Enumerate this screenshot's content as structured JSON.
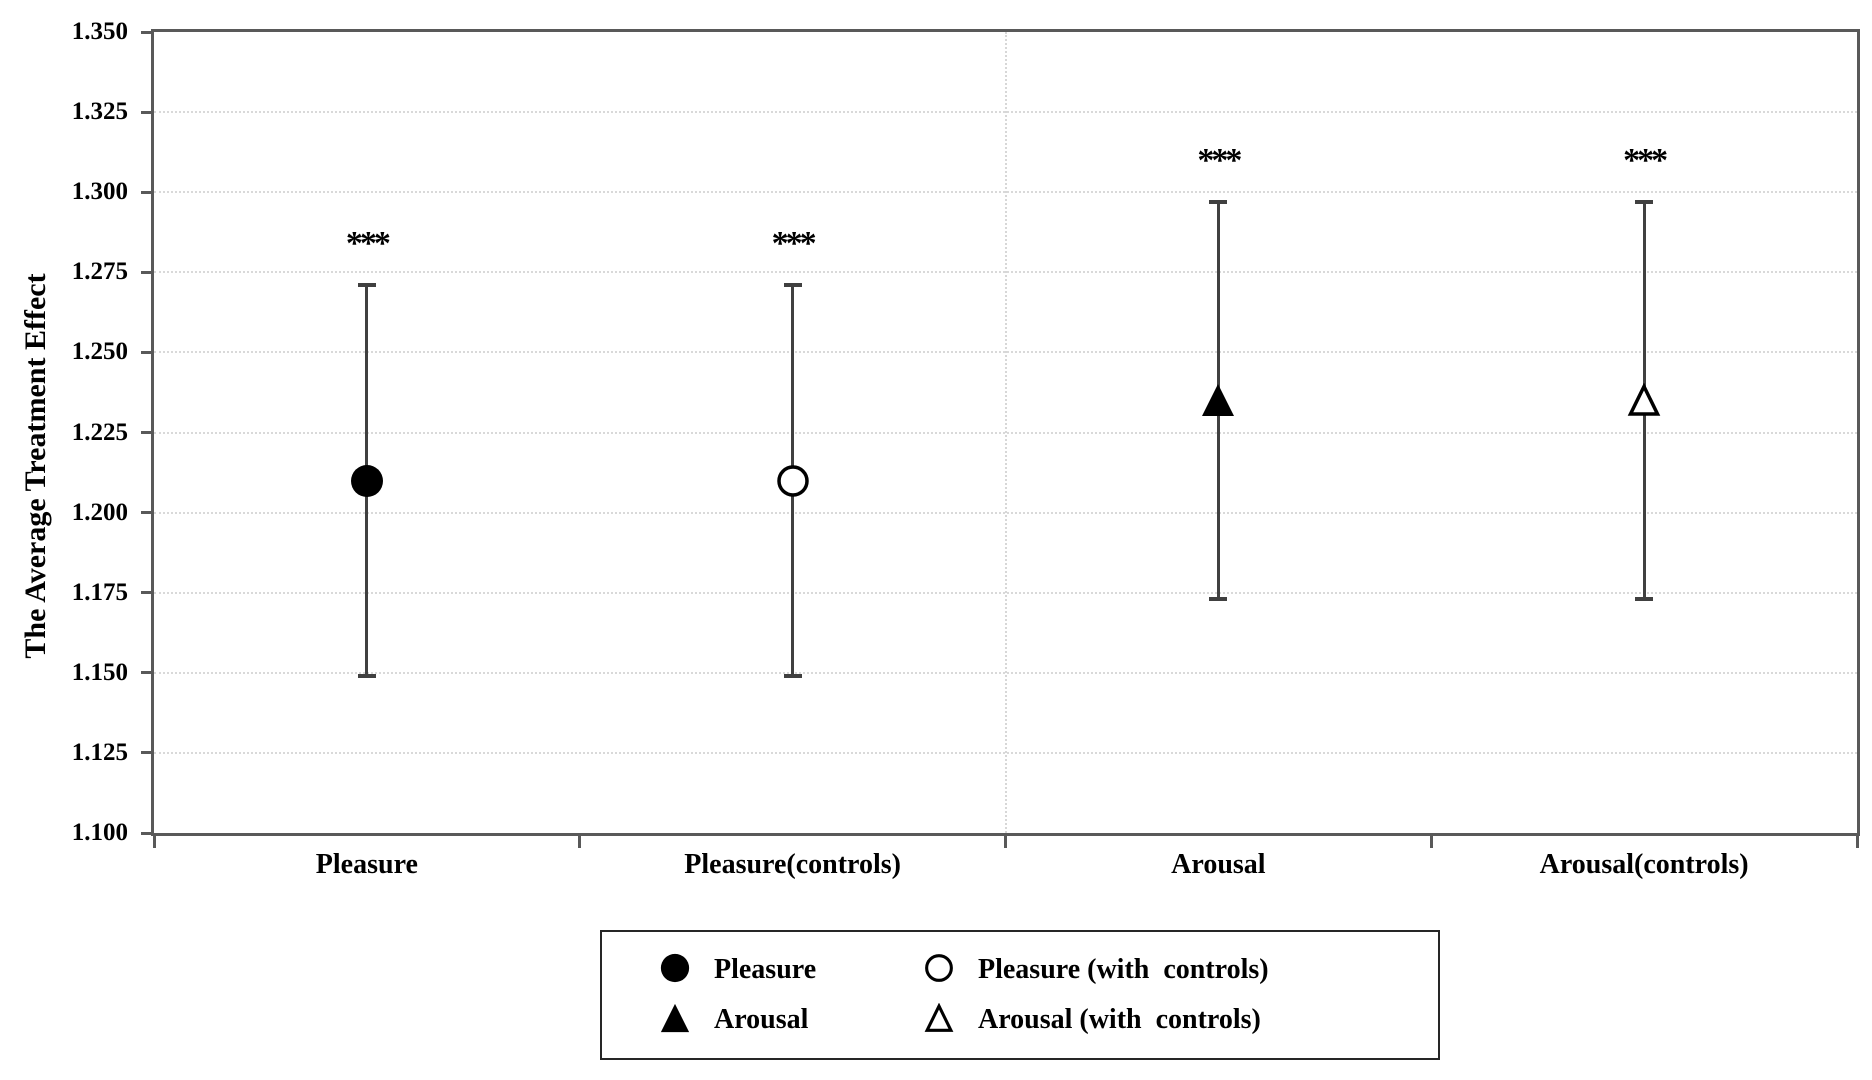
{
  "chart_data": {
    "type": "scatter",
    "title": "",
    "xlabel": "",
    "ylabel": "The Average Treatment Effect",
    "ylim": [
      1.1,
      1.35
    ],
    "ytick_step": 0.025,
    "ytick_labels": [
      "1.100",
      "1.125",
      "1.150",
      "1.175",
      "1.200",
      "1.225",
      "1.250",
      "1.275",
      "1.300",
      "1.325",
      "1.350"
    ],
    "categories": [
      "Pleasure",
      "Pleasure(controls)",
      "Arousal",
      "Arousal(controls)"
    ],
    "grid": {
      "horizontal_gridlines": true,
      "gridline_style": "dotted",
      "vertical_divider_after_category": 2
    },
    "points": [
      {
        "category": "Pleasure",
        "marker": "circle-filled",
        "value": 1.21,
        "ci_low": 1.149,
        "ci_high": 1.271,
        "significance": "***"
      },
      {
        "category": "Pleasure(controls)",
        "marker": "circle-open",
        "value": 1.21,
        "ci_low": 1.149,
        "ci_high": 1.271,
        "significance": "***"
      },
      {
        "category": "Arousal",
        "marker": "triangle-filled",
        "value": 1.235,
        "ci_low": 1.173,
        "ci_high": 1.297,
        "significance": "***"
      },
      {
        "category": "Arousal(controls)",
        "marker": "triangle-open",
        "value": 1.235,
        "ci_low": 1.173,
        "ci_high": 1.297,
        "significance": "***"
      }
    ],
    "legend": {
      "position": "bottom-center",
      "items": [
        {
          "marker": "circle-filled",
          "label": "Pleasure"
        },
        {
          "marker": "circle-open",
          "label": "Pleasure (with  controls)"
        },
        {
          "marker": "triangle-filled",
          "label": "Arousal"
        },
        {
          "marker": "triangle-open",
          "label": "Arousal (with  controls)"
        }
      ]
    }
  },
  "colors": {
    "background": "#ffffff",
    "axis": "#595959",
    "gridline": "#d9d9d9",
    "error_bar": "#404040",
    "marker": "#000000",
    "text": "#000000",
    "legend_border": "#262626"
  }
}
